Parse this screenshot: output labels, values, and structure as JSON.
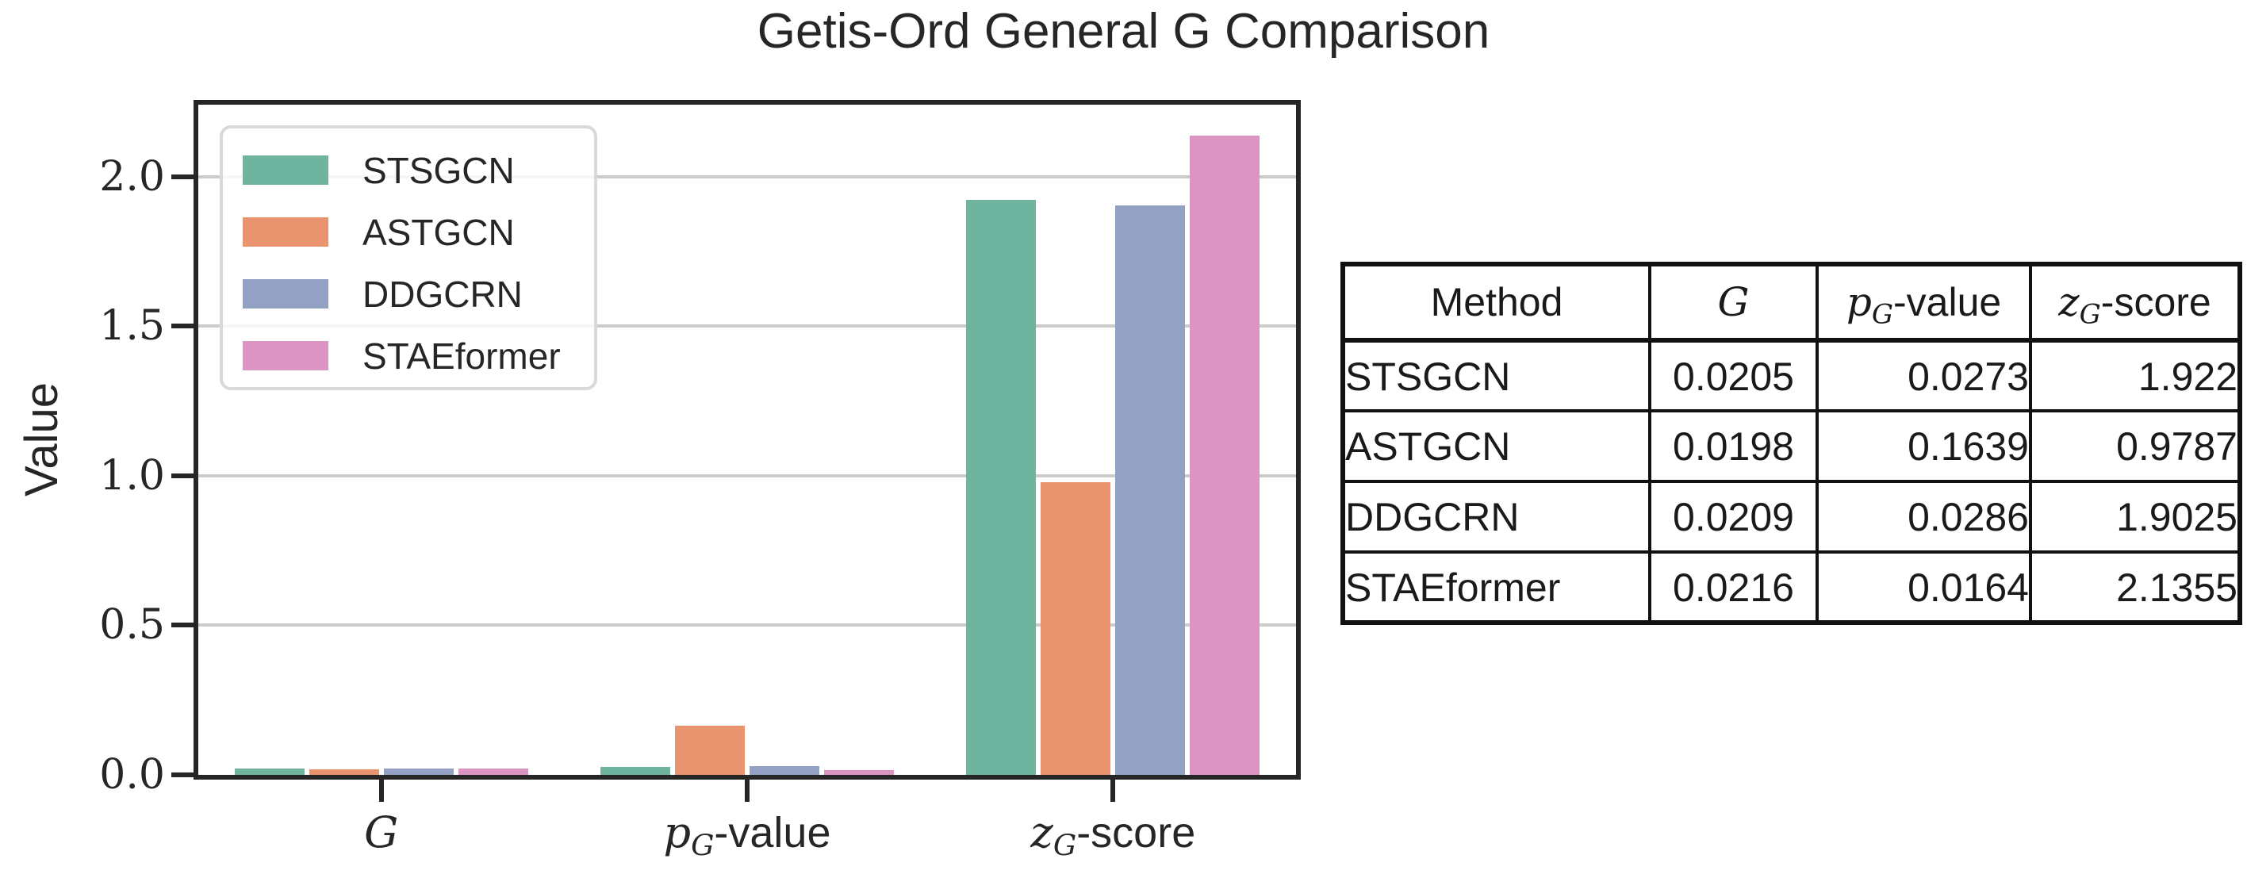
{
  "chart_data": {
    "type": "bar",
    "title": "Getis-Ord General G Comparison",
    "xlabel": "",
    "ylabel": "Value",
    "categories": [
      "G",
      "pG-value",
      "zG-score"
    ],
    "categories_display": [
      {
        "main": "G",
        "sub": "",
        "suffix": ""
      },
      {
        "main": "p",
        "sub": "G",
        "suffix": "-value"
      },
      {
        "main": "z",
        "sub": "G",
        "suffix": "-score"
      }
    ],
    "series": [
      {
        "name": "STSGCN",
        "color": "#6fb49f",
        "values": [
          0.0205,
          0.0273,
          1.922
        ]
      },
      {
        "name": "ASTGCN",
        "color": "#e9946f",
        "values": [
          0.0198,
          0.1639,
          0.9787
        ]
      },
      {
        "name": "DDGCRN",
        "color": "#93a2c4",
        "values": [
          0.0209,
          0.0286,
          1.9025
        ]
      },
      {
        "name": "STAEformer",
        "color": "#db95c3",
        "values": [
          0.0216,
          0.0164,
          2.1355
        ]
      }
    ],
    "ylim": [
      0,
      2.24
    ],
    "yticks": [
      "0.0",
      "0.5",
      "1.0",
      "1.5",
      "2.0"
    ],
    "grid": true,
    "legend_position": "upper left"
  },
  "styles": {
    "grid_color": "#cccccc",
    "spine_color": "#262626",
    "text_color": "#262626",
    "legend_border": "#d9d9d9",
    "table_border": "#111111"
  },
  "table": {
    "headers": [
      "Method",
      "G",
      "pG-value",
      "zG-score"
    ],
    "headers_display": [
      {
        "text": "Method"
      },
      {
        "main": "G",
        "sub": "",
        "suffix": ""
      },
      {
        "main": "p",
        "sub": "G",
        "suffix": "-value"
      },
      {
        "main": "z",
        "sub": "G",
        "suffix": "-score"
      }
    ],
    "rows": [
      [
        "STSGCN",
        "0.0205",
        "0.0273",
        "1.922"
      ],
      [
        "ASTGCN",
        "0.0198",
        "0.1639",
        "0.9787"
      ],
      [
        "DDGCRN",
        "0.0209",
        "0.0286",
        "1.9025"
      ],
      [
        "STAEformer",
        "0.0216",
        "0.0164",
        "2.1355"
      ]
    ]
  }
}
